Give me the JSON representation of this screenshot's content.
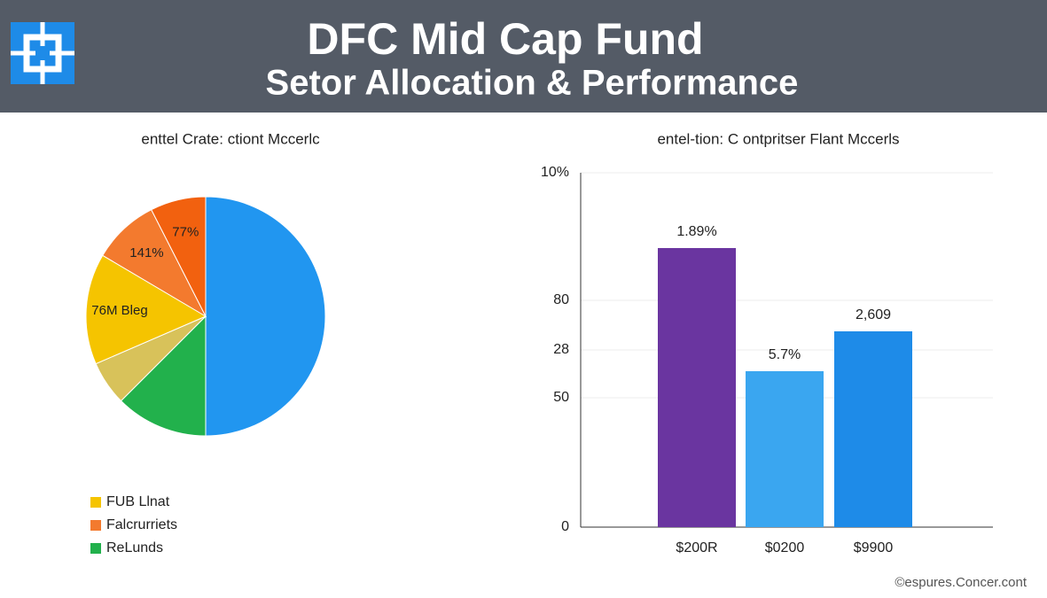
{
  "header": {
    "title": "DFC Mid Cap Fund",
    "subtitle": "Setor Allocation & Performance"
  },
  "chart_data": [
    {
      "type": "pie",
      "title": "enttel Crate: ctiont Mccerlc",
      "values": [
        50,
        12.5,
        6,
        15,
        9,
        7.5
      ],
      "colors": [
        "#2196f0",
        "#22b14c",
        "#d8c25a",
        "#f5c400",
        "#f37a2e",
        "#f2610f"
      ],
      "value_annotations": [
        null,
        null,
        null,
        "76M Bleg",
        "141%",
        "77%"
      ],
      "legend": [
        {
          "label": "FUB Llnat",
          "color": "#f5c400"
        },
        {
          "label": "Falcrurriets",
          "color": "#f37a2e"
        },
        {
          "label": "ReLunds",
          "color": "#22b14c"
        }
      ]
    },
    {
      "type": "bar",
      "title": "entel-tion: C ontpritser Flant Mccerls",
      "categories": [
        "$200R",
        "$0200",
        "$9900"
      ],
      "values": [
        78.75,
        44,
        55.25
      ],
      "colors": [
        "#6a35a0",
        "#3aa6f0",
        "#1e8be8"
      ],
      "value_annotations": [
        "1.89%",
        "5.7%",
        "2,609"
      ],
      "ylim": [
        0,
        100
      ],
      "yticks": [
        {
          "value": 100,
          "label": "10%"
        },
        {
          "value": 64,
          "label": "80"
        },
        {
          "value": 50,
          "label": "28"
        },
        {
          "value": 36.5,
          "label": "50"
        },
        0
      ],
      "grid": true
    }
  ],
  "footer": "©espures.Concer.cont"
}
